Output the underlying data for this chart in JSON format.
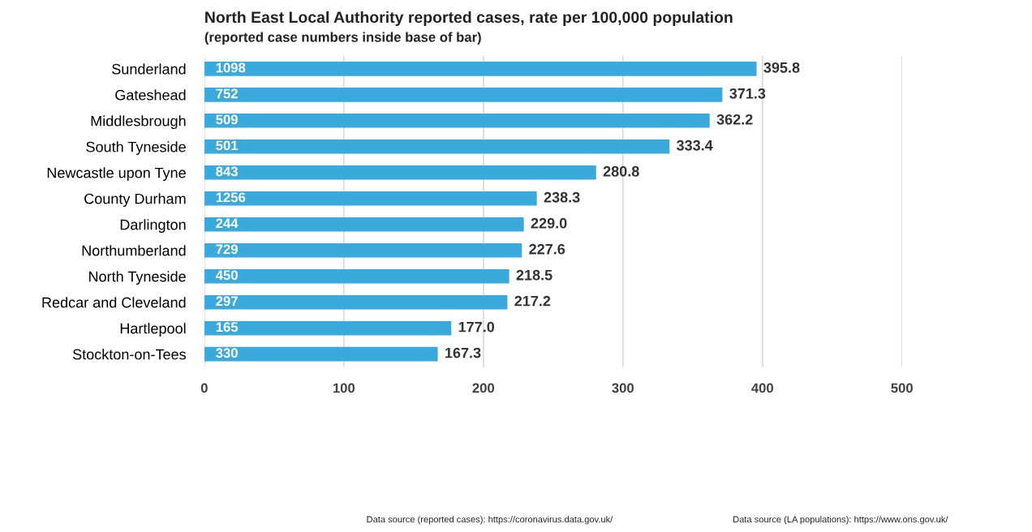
{
  "chart_data": {
    "type": "bar",
    "orientation": "horizontal",
    "title": "North East Local Authority reported cases, rate per 100,000 population",
    "subtitle": "(reported case numbers inside base of bar)",
    "categories": [
      "Sunderland",
      "Gateshead",
      "Middlesbrough",
      "South Tyneside",
      "Newcastle upon Tyne",
      "County Durham",
      "Darlington",
      "Northumberland",
      "North Tyneside",
      "Redcar and Cleveland",
      "Hartlepool",
      "Stockton-on-Tees"
    ],
    "values": [
      395.8,
      371.3,
      362.2,
      333.4,
      280.8,
      238.3,
      229.0,
      227.6,
      218.5,
      217.2,
      177.0,
      167.3
    ],
    "value_labels": [
      "395.8",
      "371.3",
      "362.2",
      "333.4",
      "280.8",
      "238.3",
      "229.0",
      "227.6",
      "218.5",
      "217.2",
      "177.0",
      "167.3"
    ],
    "color": "#3aa9dc",
    "xlim": [
      0,
      500
    ],
    "xticks": [
      0,
      100,
      200,
      300,
      400,
      500
    ],
    "grid": "x",
    "annotations": [
      "1098",
      "752",
      "509",
      "501",
      "843",
      "1256",
      "244",
      "729",
      "450",
      "297",
      "165",
      "330",
      "Data source (reported cases): https://coronavirus.data.gov.uk/",
      "Data source (LA populations): https://www.ons.gov.uk/"
    ]
  }
}
